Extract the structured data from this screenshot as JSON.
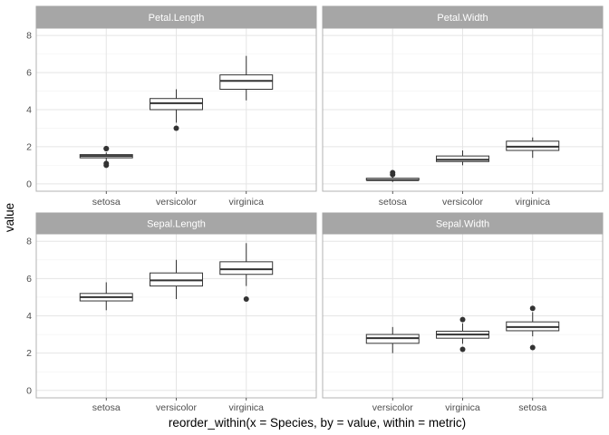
{
  "chart_data": {
    "type": "boxplot",
    "xlabel": "reorder_within(x = Species, by = value, within = metric)",
    "ylabel": "value",
    "ylim": [
      0,
      8
    ],
    "yticks": [
      0,
      2,
      4,
      6,
      8
    ],
    "grid": true,
    "colors": {
      "strip_bg": "#a6a6a6",
      "strip_text": "#ffffff",
      "panel_border": "#b3b3b3",
      "grid_major": "#e5e5e5",
      "grid_minor": "#f2f2f2",
      "box_line": "#333333",
      "box_fill": "#ffffff"
    },
    "panels": [
      {
        "title": "Petal.Length",
        "categories": [
          "setosa",
          "versicolor",
          "virginica"
        ],
        "boxes": [
          {
            "min": 1.1,
            "q1": 1.4,
            "median": 1.5,
            "q3": 1.575,
            "max": 1.7,
            "outliers": [
              1.0,
              1.1,
              1.9,
              1.9
            ]
          },
          {
            "min": 3.3,
            "q1": 4.0,
            "median": 4.35,
            "q3": 4.6,
            "max": 5.1,
            "outliers": [
              3.0
            ]
          },
          {
            "min": 4.5,
            "q1": 5.1,
            "median": 5.55,
            "q3": 5.875,
            "max": 6.9,
            "outliers": []
          }
        ]
      },
      {
        "title": "Petal.Width",
        "categories": [
          "setosa",
          "versicolor",
          "virginica"
        ],
        "boxes": [
          {
            "min": 0.1,
            "q1": 0.2,
            "median": 0.2,
            "q3": 0.3,
            "max": 0.4,
            "outliers": [
              0.5,
              0.6
            ]
          },
          {
            "min": 1.0,
            "q1": 1.2,
            "median": 1.3,
            "q3": 1.5,
            "max": 1.8,
            "outliers": []
          },
          {
            "min": 1.4,
            "q1": 1.8,
            "median": 2.0,
            "q3": 2.3,
            "max": 2.5,
            "outliers": []
          }
        ]
      },
      {
        "title": "Sepal.Length",
        "categories": [
          "setosa",
          "versicolor",
          "virginica"
        ],
        "boxes": [
          {
            "min": 4.3,
            "q1": 4.8,
            "median": 5.0,
            "q3": 5.2,
            "max": 5.8,
            "outliers": []
          },
          {
            "min": 4.9,
            "q1": 5.6,
            "median": 5.9,
            "q3": 6.3,
            "max": 7.0,
            "outliers": []
          },
          {
            "min": 5.6,
            "q1": 6.225,
            "median": 6.5,
            "q3": 6.9,
            "max": 7.9,
            "outliers": [
              4.9
            ]
          }
        ]
      },
      {
        "title": "Sepal.Width",
        "categories": [
          "versicolor",
          "virginica",
          "setosa"
        ],
        "boxes": [
          {
            "min": 2.0,
            "q1": 2.525,
            "median": 2.8,
            "q3": 3.0,
            "max": 3.4,
            "outliers": []
          },
          {
            "min": 2.5,
            "q1": 2.8,
            "median": 3.0,
            "q3": 3.175,
            "max": 3.6,
            "outliers": [
              2.2,
              3.8
            ]
          },
          {
            "min": 2.9,
            "q1": 3.2,
            "median": 3.4,
            "q3": 3.675,
            "max": 4.2,
            "outliers": [
              2.3,
              4.4
            ]
          }
        ]
      }
    ]
  }
}
